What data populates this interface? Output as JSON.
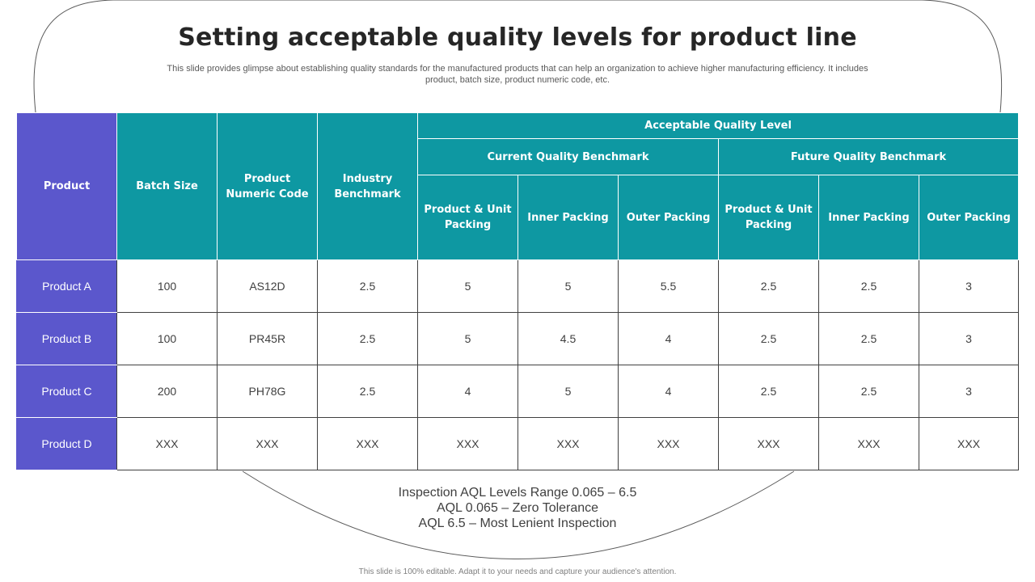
{
  "slide": {
    "title": "Setting acceptable quality levels for product line",
    "subtitle": "This slide provides glimpse about establishing quality standards for the manufactured products that can help an organization to achieve higher manufacturing efficiency. It includes product, batch size, product numeric code, etc.",
    "footer": "This slide is 100% editable. Adapt it to your needs and capture your audience's attention."
  },
  "colors": {
    "product_header": "#5b57cc",
    "teal_header": "#0e98a2"
  },
  "table": {
    "headers": {
      "product": "Product",
      "batch_size": "Batch Size",
      "numeric_code": "Product Numeric Code",
      "industry_benchmark": "Industry Benchmark",
      "aql": "Acceptable Quality Level",
      "current": "Current Quality Benchmark",
      "future": "Future Quality Benchmark",
      "current_sub": [
        "Product & Unit Packing",
        "Inner Packing",
        "Outer Packing"
      ],
      "future_sub": [
        "Product & Unit Packing",
        "Inner Packing",
        "Outer Packing"
      ]
    },
    "rows": [
      [
        "Product A",
        "100",
        "AS12D",
        "2.5",
        "5",
        "5",
        "5.5",
        "2.5",
        "2.5",
        "3"
      ],
      [
        "Product B",
        "100",
        "PR45R",
        "2.5",
        "5",
        "4.5",
        "4",
        "2.5",
        "2.5",
        "3"
      ],
      [
        "Product C",
        "200",
        "PH78G",
        "2.5",
        "4",
        "5",
        "4",
        "2.5",
        "2.5",
        "3"
      ],
      [
        "Product D",
        "XXX",
        "XXX",
        "XXX",
        "XXX",
        "XXX",
        "XXX",
        "XXX",
        "XXX",
        "XXX"
      ]
    ]
  },
  "notes": [
    "Inspection AQL Levels Range 0.065 – 6.5",
    "AQL 0.065  – Zero Tolerance",
    "AQL 6.5 – Most Lenient Inspection"
  ]
}
